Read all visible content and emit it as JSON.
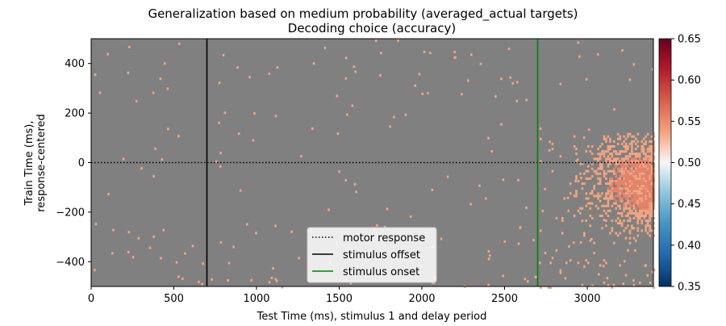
{
  "chart_data": {
    "type": "heatmap",
    "title": "Generalization based on medium probability (averaged_actual targets)",
    "subtitle": "Decoding choice (accuracy)",
    "xlabel": "Test Time (ms), stimulus 1 and delay period",
    "ylabel_line1": "Train Time (ms),",
    "ylabel_line2": "response-centered",
    "xlim": [
      0,
      3400
    ],
    "ylim": [
      -500,
      500
    ],
    "x_ticks": [
      0,
      500,
      1000,
      1500,
      2000,
      2500,
      3000
    ],
    "x_tick_labels": [
      "0",
      "500",
      "1000",
      "1500",
      "2000",
      "2500",
      "3000"
    ],
    "y_ticks": [
      400,
      200,
      0,
      -200,
      -400
    ],
    "y_tick_labels": [
      "400",
      "200",
      "0",
      "−200",
      "−400"
    ],
    "colorbar": {
      "vmin": 0.35,
      "vmax": 0.65,
      "ticks": [
        0.65,
        0.6,
        0.55,
        0.5,
        0.45,
        0.4,
        0.35
      ],
      "tick_labels": [
        "0.65",
        "0.60",
        "0.55",
        "0.50",
        "0.45",
        "0.40",
        "0.35"
      ],
      "colormap": "RdBu_r"
    },
    "masked_color": "#808080",
    "significant_color": "#f4a582",
    "strong_significant_color": "#e8836a",
    "significant_region": {
      "x_range": [
        2700,
        3400
      ],
      "y_range": [
        -500,
        130
      ],
      "peak_value": 0.56,
      "typical_value": 0.54
    },
    "reference_lines": [
      {
        "kind": "horizontal",
        "value": 0,
        "style": "dotted",
        "color": "#000000",
        "label": "motor response"
      },
      {
        "kind": "vertical",
        "value": 700,
        "style": "solid",
        "color": "#000000",
        "label": "stimulus offset"
      },
      {
        "kind": "vertical",
        "value": 2700,
        "style": "solid",
        "color": "#008000",
        "label": "stimulus onset"
      }
    ],
    "legend_position": "bottom-center",
    "grid": false
  }
}
